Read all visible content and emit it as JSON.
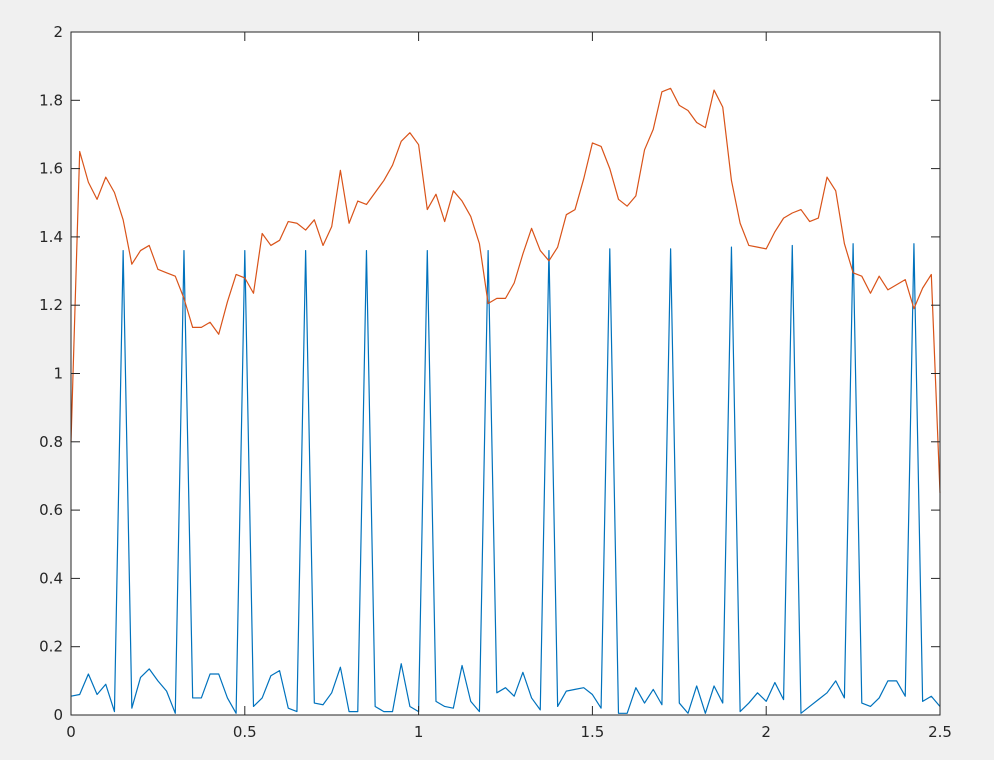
{
  "chart_data": {
    "type": "line",
    "x": [
      0,
      0.025,
      0.05,
      0.075,
      0.1,
      0.125,
      0.15,
      0.175,
      0.2,
      0.225,
      0.25,
      0.275,
      0.3,
      0.325,
      0.35,
      0.375,
      0.4,
      0.425,
      0.45,
      0.475,
      0.5,
      0.525,
      0.55,
      0.575,
      0.6,
      0.625,
      0.65,
      0.675,
      0.7,
      0.725,
      0.75,
      0.775,
      0.8,
      0.825,
      0.85,
      0.875,
      0.9,
      0.925,
      0.95,
      0.975,
      1,
      1.025,
      1.05,
      1.075,
      1.1,
      1.125,
      1.15,
      1.175,
      1.2,
      1.225,
      1.25,
      1.275,
      1.3,
      1.325,
      1.35,
      1.375,
      1.4,
      1.425,
      1.45,
      1.475,
      1.5,
      1.525,
      1.55,
      1.575,
      1.6,
      1.625,
      1.65,
      1.675,
      1.7,
      1.725,
      1.75,
      1.775,
      1.8,
      1.825,
      1.85,
      1.875,
      1.9,
      1.925,
      1.95,
      1.975,
      2,
      2.025,
      2.05,
      2.075,
      2.1,
      2.125,
      2.15,
      2.175,
      2.2,
      2.225,
      2.25,
      2.275,
      2.3,
      2.325,
      2.35,
      2.375,
      2.4,
      2.425,
      2.45,
      2.475,
      2.5
    ],
    "series": [
      {
        "color": "#0072bd",
        "values": [
          0.055,
          0.06,
          0.12,
          0.06,
          0.09,
          0.01,
          1.36,
          0.02,
          0.11,
          0.135,
          0.1,
          0.07,
          0.005,
          1.36,
          0.05,
          0.05,
          0.12,
          0.12,
          0.05,
          0.005,
          1.36,
          0.025,
          0.05,
          0.115,
          0.13,
          0.02,
          0.01,
          1.36,
          0.035,
          0.03,
          0.065,
          0.14,
          0.01,
          0.01,
          1.36,
          0.025,
          0.01,
          0.01,
          0.15,
          0.025,
          0.01,
          1.36,
          0.04,
          0.025,
          0.02,
          0.145,
          0.04,
          0.01,
          1.36,
          0.065,
          0.08,
          0.055,
          0.125,
          0.05,
          0.015,
          1.36,
          0.025,
          0.07,
          0.075,
          0.08,
          0.06,
          0.02,
          1.365,
          0.005,
          0.005,
          0.08,
          0.035,
          0.075,
          0.03,
          1.365,
          0.035,
          0.005,
          0.085,
          0.005,
          0.085,
          0.035,
          1.37,
          0.01,
          0.035,
          0.065,
          0.04,
          0.095,
          0.045,
          1.375,
          0.005,
          0.025,
          0.045,
          0.065,
          0.1,
          0.05,
          1.38,
          0.035,
          0.025,
          0.05,
          0.1,
          0.1,
          0.055,
          1.38,
          0.04,
          0.055,
          0.025
        ]
      },
      {
        "color": "#d95319",
        "values": [
          0.8,
          1.65,
          1.56,
          1.51,
          1.575,
          1.53,
          1.45,
          1.32,
          1.36,
          1.375,
          1.305,
          1.295,
          1.285,
          1.22,
          1.135,
          1.135,
          1.15,
          1.115,
          1.21,
          1.29,
          1.28,
          1.235,
          1.41,
          1.375,
          1.39,
          1.445,
          1.44,
          1.42,
          1.45,
          1.375,
          1.43,
          1.595,
          1.44,
          1.505,
          1.495,
          1.53,
          1.565,
          1.61,
          1.68,
          1.705,
          1.67,
          1.48,
          1.525,
          1.445,
          1.535,
          1.505,
          1.46,
          1.38,
          1.205,
          1.22,
          1.22,
          1.265,
          1.35,
          1.425,
          1.36,
          1.33,
          1.37,
          1.465,
          1.48,
          1.57,
          1.675,
          1.665,
          1.6,
          1.51,
          1.49,
          1.52,
          1.655,
          1.715,
          1.825,
          1.835,
          1.785,
          1.77,
          1.735,
          1.72,
          1.83,
          1.78,
          1.565,
          1.44,
          1.375,
          1.37,
          1.365,
          1.415,
          1.455,
          1.47,
          1.48,
          1.445,
          1.455,
          1.575,
          1.535,
          1.38,
          1.295,
          1.285,
          1.235,
          1.285,
          1.245,
          1.26,
          1.275,
          1.19,
          1.25,
          1.29,
          0.65
        ]
      }
    ],
    "xlim": [
      0,
      2.5
    ],
    "xticks": [
      0,
      0.5,
      1,
      1.5,
      2,
      2.5
    ],
    "ylim": [
      0,
      2
    ],
    "yticks": [
      0,
      0.2,
      0.4,
      0.6,
      0.8,
      1,
      1.2,
      1.4,
      1.6,
      1.8,
      2
    ]
  }
}
